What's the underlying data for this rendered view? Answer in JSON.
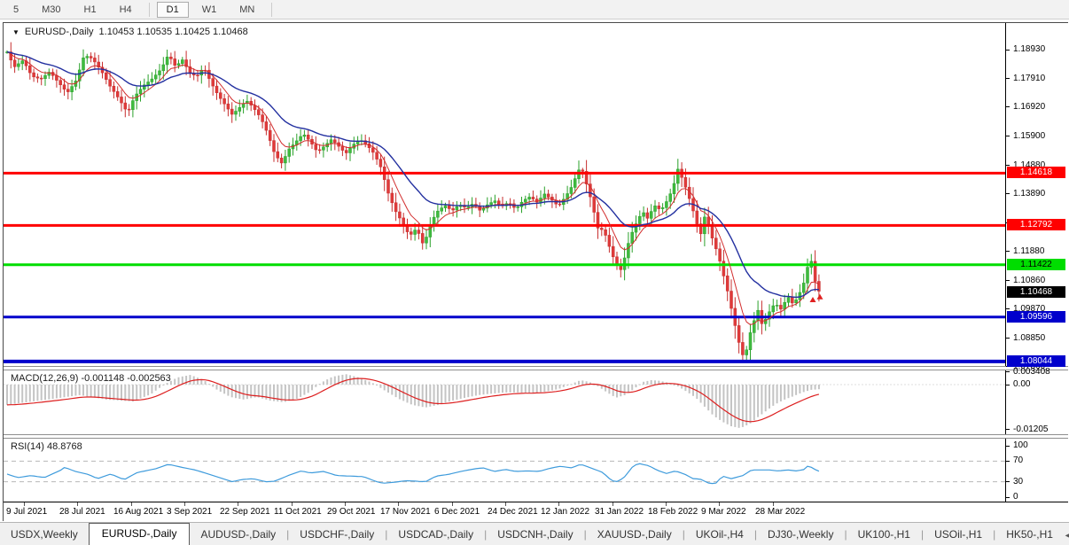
{
  "toolbar": {
    "timeframes": [
      "5",
      "M30",
      "H1",
      "H4",
      "D1",
      "W1",
      "MN"
    ],
    "active": "D1"
  },
  "title": {
    "dropdown_icon": "▼",
    "symbol": "EURUSD-,Daily",
    "ohlc": "1.10453 1.10535 1.10425 1.10468"
  },
  "price_axis": {
    "ticks": [
      "1.18930",
      "1.17910",
      "1.16920",
      "1.15900",
      "1.14880",
      "1.13890",
      "1.12870",
      "1.11880",
      "1.10860",
      "1.09870",
      "1.08850",
      "1.07860"
    ],
    "labels": [
      {
        "text": "1.14618",
        "bg": "#FF0000",
        "fg": "#FFFFFF"
      },
      {
        "text": "1.12792",
        "bg": "#FF0000",
        "fg": "#FFFFFF"
      },
      {
        "text": "1.11422",
        "bg": "#00DD00",
        "fg": "#000000"
      },
      {
        "text": "1.10468",
        "bg": "#000000",
        "fg": "#FFFFFF"
      },
      {
        "text": "1.09596",
        "bg": "#0000CC",
        "fg": "#FFFFFF"
      },
      {
        "text": "1.08044",
        "bg": "#0000CC",
        "fg": "#FFFFFF"
      }
    ]
  },
  "macd": {
    "label": "MACD(12,26,9) -0.001148 -0.002563",
    "axis": [
      "0.003408",
      "0.00",
      "-0.01205"
    ]
  },
  "rsi": {
    "label": "RSI(14) 48.8768",
    "axis": [
      "100",
      "70",
      "30",
      "0"
    ]
  },
  "date_axis": {
    "labels": [
      "9 Jul 2021",
      "28 Jul 2021",
      "16 Aug 2021",
      "3 Sep 2021",
      "22 Sep 2021",
      "11 Oct 2021",
      "29 Oct 2021",
      "17 Nov 2021",
      "6 Dec 2021",
      "24 Dec 2021",
      "12 Jan 2022",
      "31 Jan 2022",
      "18 Feb 2022",
      "9 Mar 2022",
      "28 Mar 2022"
    ],
    "positions": [
      3,
      63,
      124,
      184,
      244,
      305,
      365,
      425,
      486,
      546,
      606,
      667,
      727,
      787,
      848
    ]
  },
  "tabs": {
    "items": [
      "USDX,Weekly",
      "EURUSD-,Daily",
      "AUDUSD-,Daily",
      "USDCHF-,Daily",
      "USDCAD-,Daily",
      "USDCNH-,Daily",
      "XAUUSD-,Daily",
      "UKOil-,H4",
      "DJ30-,Weekly",
      "UK100-,H1",
      "USOil-,H1",
      "HK50-,H1"
    ],
    "active": "EURUSD-,Daily",
    "scroll_left": "◄",
    "scroll_right": "►"
  },
  "chart_data": {
    "main": {
      "type": "candlestick",
      "symbol": "EURUSD",
      "timeframe": "Daily",
      "ohlc_display": {
        "open": 1.10453,
        "high": 1.10535,
        "low": 1.10425,
        "close": 1.10468
      },
      "y_range": [
        1.0786,
        1.1893
      ],
      "x_domain": [
        8,
        926
      ],
      "grid": false,
      "colors": {
        "up_fill": "#3FBB3F",
        "up_stroke": "#2AA12A",
        "down_fill": "#E03A3A",
        "down_stroke": "#C72F2F",
        "ma_fast": "#D22D2D",
        "ma_slow": "#2330A0"
      },
      "levels": [
        {
          "price": 1.14618,
          "color": "#FF0000",
          "width": 3
        },
        {
          "price": 1.12792,
          "color": "#FF0000",
          "width": 3
        },
        {
          "price": 1.11422,
          "color": "#00DD00",
          "width": 3
        },
        {
          "price": 1.09596,
          "color": "#0000CC",
          "width": 3
        },
        {
          "price": 1.08044,
          "color": "#0000CC",
          "width": 4
        }
      ],
      "moving_averages": [
        {
          "name": "fast",
          "alpha": 0.25
        },
        {
          "name": "slow",
          "alpha": 0.09
        }
      ],
      "candle_gen": {
        "step": 4.3,
        "body_width": 3,
        "seed": 7,
        "wick_base": 0.0005,
        "wick_var": 0.0018
      },
      "markers": [
        {
          "x": 917,
          "price": 1.103
        },
        {
          "x": 925,
          "price": 1.104
        }
      ],
      "close_path": [
        [
          8,
          1.1885
        ],
        [
          16,
          1.1832
        ],
        [
          26,
          1.1856
        ],
        [
          36,
          1.18
        ],
        [
          46,
          1.179
        ],
        [
          56,
          1.1816
        ],
        [
          66,
          1.1778
        ],
        [
          76,
          1.1742
        ],
        [
          86,
          1.1786
        ],
        [
          95,
          1.1874
        ],
        [
          104,
          1.1862
        ],
        [
          114,
          1.182
        ],
        [
          124,
          1.1766
        ],
        [
          134,
          1.1722
        ],
        [
          144,
          1.1672
        ],
        [
          152,
          1.173
        ],
        [
          162,
          1.1768
        ],
        [
          172,
          1.1792
        ],
        [
          182,
          1.1826
        ],
        [
          190,
          1.1876
        ],
        [
          198,
          1.1834
        ],
        [
          206,
          1.1858
        ],
        [
          214,
          1.181
        ],
        [
          222,
          1.18
        ],
        [
          230,
          1.1832
        ],
        [
          238,
          1.1778
        ],
        [
          246,
          1.1734
        ],
        [
          254,
          1.17
        ],
        [
          262,
          1.1666
        ],
        [
          270,
          1.169
        ],
        [
          278,
          1.1716
        ],
        [
          286,
          1.169
        ],
        [
          294,
          1.1656
        ],
        [
          302,
          1.16
        ],
        [
          310,
          1.1528
        ],
        [
          318,
          1.1496
        ],
        [
          326,
          1.1546
        ],
        [
          334,
          1.1572
        ],
        [
          342,
          1.16
        ],
        [
          350,
          1.1572
        ],
        [
          358,
          1.1536
        ],
        [
          366,
          1.1556
        ],
        [
          374,
          1.158
        ],
        [
          382,
          1.1556
        ],
        [
          390,
          1.153
        ],
        [
          398,
          1.156
        ],
        [
          406,
          1.158
        ],
        [
          414,
          1.156
        ],
        [
          422,
          1.153
        ],
        [
          430,
          1.148
        ],
        [
          438,
          1.1392
        ],
        [
          446,
          1.133
        ],
        [
          454,
          1.129
        ],
        [
          462,
          1.1242
        ],
        [
          470,
          1.127
        ],
        [
          478,
          1.1208
        ],
        [
          486,
          1.129
        ],
        [
          494,
          1.133
        ],
        [
          502,
          1.135
        ],
        [
          510,
          1.133
        ],
        [
          518,
          1.1352
        ],
        [
          526,
          1.134
        ],
        [
          534,
          1.1356
        ],
        [
          542,
          1.133
        ],
        [
          550,
          1.1352
        ],
        [
          558,
          1.1366
        ],
        [
          566,
          1.1346
        ],
        [
          574,
          1.136
        ],
        [
          582,
          1.1336
        ],
        [
          590,
          1.1366
        ],
        [
          598,
          1.138
        ],
        [
          606,
          1.136
        ],
        [
          614,
          1.139
        ],
        [
          622,
          1.137
        ],
        [
          630,
          1.1346
        ],
        [
          638,
          1.138
        ],
        [
          646,
          1.142
        ],
        [
          652,
          1.147
        ],
        [
          656,
          1.1482
        ],
        [
          660,
          1.144
        ],
        [
          664,
          1.14
        ],
        [
          668,
          1.1356
        ],
        [
          672,
          1.13
        ],
        [
          676,
          1.1252
        ],
        [
          680,
          1.127
        ],
        [
          685,
          1.123
        ],
        [
          690,
          1.118
        ],
        [
          695,
          1.115
        ],
        [
          700,
          1.1122
        ],
        [
          705,
          1.117
        ],
        [
          710,
          1.123
        ],
        [
          715,
          1.127
        ],
        [
          720,
          1.13
        ],
        [
          725,
          1.133
        ],
        [
          730,
          1.1302
        ],
        [
          735,
          1.133
        ],
        [
          740,
          1.1352
        ],
        [
          745,
          1.133
        ],
        [
          750,
          1.1352
        ],
        [
          755,
          1.138
        ],
        [
          760,
          1.142
        ],
        [
          765,
          1.1478
        ],
        [
          770,
          1.144
        ],
        [
          775,
          1.14
        ],
        [
          780,
          1.135
        ],
        [
          785,
          1.13
        ],
        [
          790,
          1.1242
        ],
        [
          795,
          1.131
        ],
        [
          800,
          1.127
        ],
        [
          805,
          1.122
        ],
        [
          810,
          1.118
        ],
        [
          815,
          1.112
        ],
        [
          820,
          1.106
        ],
        [
          825,
          1.099
        ],
        [
          830,
          1.092
        ],
        [
          835,
          1.0852
        ],
        [
          840,
          1.081
        ],
        [
          845,
          1.089
        ],
        [
          850,
          1.094
        ],
        [
          855,
          1.0984
        ],
        [
          860,
          1.093
        ],
        [
          865,
          1.096
        ],
        [
          870,
          1.099
        ],
        [
          875,
          1.101
        ],
        [
          880,
          1.0982
        ],
        [
          885,
          1.101
        ],
        [
          890,
          1.103
        ],
        [
          895,
          1.1002
        ],
        [
          900,
          1.103
        ],
        [
          905,
          1.1062
        ],
        [
          910,
          1.111
        ],
        [
          913,
          1.118
        ],
        [
          916,
          1.1146
        ],
        [
          919,
          1.1092
        ],
        [
          922,
          1.1052
        ],
        [
          926,
          1.10468
        ]
      ]
    },
    "macd": {
      "type": "bar+line",
      "label": "MACD(12,26,9)",
      "main_value": -0.001148,
      "signal_value": -0.002563,
      "scale": {
        "max": 0.003408,
        "zero": 0,
        "min": -0.01205
      },
      "colors": {
        "histogram": "#C4C4C4",
        "signal": "#DD2020"
      },
      "signal_alpha": 0.18,
      "path": [
        [
          8,
          -0.0054
        ],
        [
          30,
          -0.0047
        ],
        [
          60,
          -0.0038
        ],
        [
          90,
          -0.0028
        ],
        [
          120,
          -0.004
        ],
        [
          150,
          -0.0045
        ],
        [
          170,
          -0.0026
        ],
        [
          185,
          0.0
        ],
        [
          200,
          0.0019
        ],
        [
          215,
          0.0026
        ],
        [
          230,
          0.0012
        ],
        [
          245,
          -0.0014
        ],
        [
          260,
          -0.0033
        ],
        [
          275,
          -0.004
        ],
        [
          290,
          -0.0033
        ],
        [
          305,
          -0.0043
        ],
        [
          320,
          -0.0047
        ],
        [
          335,
          -0.0038
        ],
        [
          350,
          -0.0019
        ],
        [
          362,
          0.0005
        ],
        [
          375,
          0.0021
        ],
        [
          390,
          0.0028
        ],
        [
          405,
          0.0019
        ],
        [
          420,
          0.0005
        ],
        [
          435,
          -0.0017
        ],
        [
          450,
          -0.0038
        ],
        [
          465,
          -0.0054
        ],
        [
          480,
          -0.0061
        ],
        [
          495,
          -0.0054
        ],
        [
          510,
          -0.0043
        ],
        [
          525,
          -0.0035
        ],
        [
          540,
          -0.0028
        ],
        [
          555,
          -0.0024
        ],
        [
          570,
          -0.0021
        ],
        [
          585,
          -0.0021
        ],
        [
          600,
          -0.0022
        ],
        [
          615,
          -0.0019
        ],
        [
          630,
          -0.0012
        ],
        [
          645,
          0.0002
        ],
        [
          655,
          0.0012
        ],
        [
          665,
          0.0007
        ],
        [
          675,
          -0.0005
        ],
        [
          685,
          -0.0021
        ],
        [
          695,
          -0.0035
        ],
        [
          705,
          -0.0028
        ],
        [
          715,
          -0.0012
        ],
        [
          725,
          0.0007
        ],
        [
          735,
          0.0012
        ],
        [
          745,
          0.001
        ],
        [
          755,
          0.0004
        ],
        [
          765,
          -0.0005
        ],
        [
          775,
          -0.0019
        ],
        [
          785,
          -0.0035
        ],
        [
          795,
          -0.0059
        ],
        [
          805,
          -0.0083
        ],
        [
          815,
          -0.0099
        ],
        [
          825,
          -0.0111
        ],
        [
          835,
          -0.0116
        ],
        [
          845,
          -0.0106
        ],
        [
          855,
          -0.0087
        ],
        [
          865,
          -0.0069
        ],
        [
          875,
          -0.0052
        ],
        [
          885,
          -0.004
        ],
        [
          895,
          -0.0031
        ],
        [
          905,
          -0.0021
        ],
        [
          915,
          -0.0014
        ],
        [
          926,
          -0.0012
        ]
      ]
    },
    "rsi": {
      "type": "line",
      "label": "RSI(14)",
      "value_display": 48.8768,
      "range": [
        0,
        100
      ],
      "levels": [
        70,
        30
      ],
      "colors": {
        "line": "#3E9BDC",
        "level_dash": "#B8B8B8"
      },
      "path": [
        [
          8,
          45
        ],
        [
          20,
          38
        ],
        [
          35,
          42
        ],
        [
          50,
          38
        ],
        [
          68,
          52
        ],
        [
          73,
          58
        ],
        [
          85,
          50
        ],
        [
          100,
          44
        ],
        [
          110,
          36
        ],
        [
          125,
          45
        ],
        [
          140,
          34
        ],
        [
          155,
          48
        ],
        [
          175,
          55
        ],
        [
          190,
          64
        ],
        [
          205,
          58
        ],
        [
          220,
          53
        ],
        [
          235,
          45
        ],
        [
          255,
          34
        ],
        [
          262,
          30
        ],
        [
          272,
          34
        ],
        [
          285,
          36
        ],
        [
          300,
          30
        ],
        [
          310,
          31
        ],
        [
          325,
          42
        ],
        [
          340,
          51
        ],
        [
          350,
          47
        ],
        [
          365,
          50
        ],
        [
          380,
          42
        ],
        [
          395,
          41
        ],
        [
          410,
          40
        ],
        [
          425,
          30
        ],
        [
          432,
          27
        ],
        [
          445,
          29
        ],
        [
          458,
          32
        ],
        [
          470,
          31
        ],
        [
          480,
          30
        ],
        [
          492,
          41
        ],
        [
          505,
          44
        ],
        [
          520,
          50
        ],
        [
          535,
          55
        ],
        [
          545,
          57
        ],
        [
          558,
          50
        ],
        [
          570,
          54
        ],
        [
          582,
          50
        ],
        [
          595,
          51
        ],
        [
          608,
          50
        ],
        [
          620,
          56
        ],
        [
          632,
          60
        ],
        [
          645,
          57
        ],
        [
          655,
          64
        ],
        [
          668,
          56
        ],
        [
          680,
          48
        ],
        [
          690,
          32
        ],
        [
          697,
          30
        ],
        [
          705,
          40
        ],
        [
          715,
          62
        ],
        [
          722,
          65
        ],
        [
          732,
          61
        ],
        [
          742,
          52
        ],
        [
          752,
          46
        ],
        [
          762,
          51
        ],
        [
          772,
          45
        ],
        [
          782,
          36
        ],
        [
          790,
          35
        ],
        [
          800,
          27
        ],
        [
          807,
          26
        ],
        [
          815,
          41
        ],
        [
          825,
          36
        ],
        [
          838,
          42
        ],
        [
          848,
          53
        ],
        [
          858,
          53
        ],
        [
          868,
          53
        ],
        [
          878,
          51
        ],
        [
          888,
          53
        ],
        [
          898,
          51
        ],
        [
          908,
          54
        ],
        [
          912,
          62
        ],
        [
          918,
          55
        ],
        [
          926,
          49
        ]
      ]
    }
  }
}
